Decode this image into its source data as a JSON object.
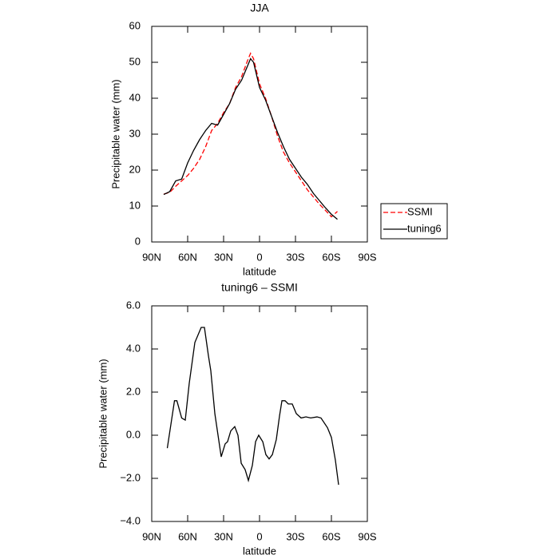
{
  "chart_data": [
    {
      "type": "line",
      "title": "JJA",
      "x_label": "latitude",
      "y_label": "Precipitable water (mm)",
      "xlim": [
        90,
        -90
      ],
      "xticks": [
        {
          "value": 90,
          "label": "90N"
        },
        {
          "value": 60,
          "label": "60N"
        },
        {
          "value": 30,
          "label": "30N"
        },
        0,
        {
          "value": -30,
          "label": "30S"
        },
        {
          "value": -60,
          "label": "60S"
        },
        {
          "value": -90,
          "label": "90S"
        }
      ],
      "ylim": [
        0,
        60
      ],
      "yticks": [
        0,
        10,
        20,
        30,
        40,
        50,
        60
      ],
      "legend": "right",
      "x": [
        80,
        75,
        70,
        65,
        60,
        55,
        50,
        45,
        40,
        35,
        30,
        25,
        20,
        15,
        10,
        7.5,
        5,
        0,
        -5,
        -10,
        -15,
        -20,
        -25,
        -30,
        -35,
        -40,
        -45,
        -50,
        -55,
        -60,
        -65
      ],
      "series": [
        {
          "name": "SSMI",
          "color": "#ff0000",
          "linestyle": "dashed",
          "values": [
            13.3,
            13.8,
            15.5,
            17,
            18.5,
            20.5,
            23,
            26.5,
            31,
            33,
            36,
            38.5,
            43,
            46,
            50.5,
            52.5,
            51,
            44,
            40,
            35,
            29.5,
            25,
            22,
            19.5,
            17,
            14.5,
            12.5,
            10.5,
            8.8,
            7,
            8.5
          ]
        },
        {
          "name": "tuning6",
          "color": "#000000",
          "linestyle": "solid",
          "values": [
            13.2,
            14,
            17,
            17.5,
            22,
            25.5,
            28.5,
            31,
            33,
            32.5,
            35.5,
            38.5,
            42.5,
            45,
            49,
            51,
            50,
            43,
            39.5,
            35,
            30.5,
            26.5,
            23,
            20.5,
            18,
            16,
            13.5,
            11.5,
            9.5,
            7.7,
            6.3
          ]
        }
      ]
    },
    {
      "type": "line",
      "title": "tuning6 – SSMI",
      "x_label": "latitude",
      "y_label": "Precipitable water (mm)",
      "xlim": [
        90,
        -90
      ],
      "xticks": [
        {
          "value": 90,
          "label": "90N"
        },
        {
          "value": 60,
          "label": "60N"
        },
        {
          "value": 30,
          "label": "30N"
        },
        0,
        {
          "value": -30,
          "label": "30S"
        },
        {
          "value": -60,
          "label": "60S"
        },
        {
          "value": -90,
          "label": "90S"
        }
      ],
      "ylim": [
        -4,
        6
      ],
      "yticks": [
        {
          "value": -4,
          "label": "−4.0"
        },
        {
          "value": -2,
          "label": "−2.0"
        },
        {
          "value": 0,
          "label": "0.0"
        },
        {
          "value": 2,
          "label": "2.0"
        },
        {
          "value": 4,
          "label": "4.0"
        },
        {
          "value": 6,
          "label": "6.0"
        }
      ],
      "color": "#000000",
      "x": [
        77,
        71,
        69,
        65,
        62,
        58.7,
        54,
        48.7,
        46,
        42.7,
        40.7,
        37.3,
        32,
        28.7,
        26.7,
        24,
        20.7,
        18,
        15.3,
        12,
        9.3,
        6,
        3.3,
        0.7,
        -2.7,
        -5.3,
        -8,
        -10.7,
        -14,
        -16.7,
        -18.7,
        -21.3,
        -24,
        -27.3,
        -30.7,
        -34.7,
        -38.7,
        -42.7,
        -48,
        -51.3,
        -56.7,
        -60,
        -63.3,
        -66
      ],
      "values": [
        -0.6,
        1.6,
        1.6,
        0.8,
        0.7,
        2.4,
        4.3,
        5.0,
        5.0,
        3.7,
        3.0,
        1.0,
        -1.0,
        -0.4,
        -0.3,
        0.2,
        0.4,
        0.0,
        -1.3,
        -1.6,
        -2.1,
        -1.4,
        -0.3,
        0,
        -0.3,
        -0.9,
        -1.1,
        -0.9,
        -0.2,
        0.9,
        1.6,
        1.6,
        1.45,
        1.45,
        1.0,
        0.8,
        0.85,
        0.8,
        0.85,
        0.8,
        0.35,
        -0.1,
        -1.15,
        -2.3
      ]
    }
  ]
}
